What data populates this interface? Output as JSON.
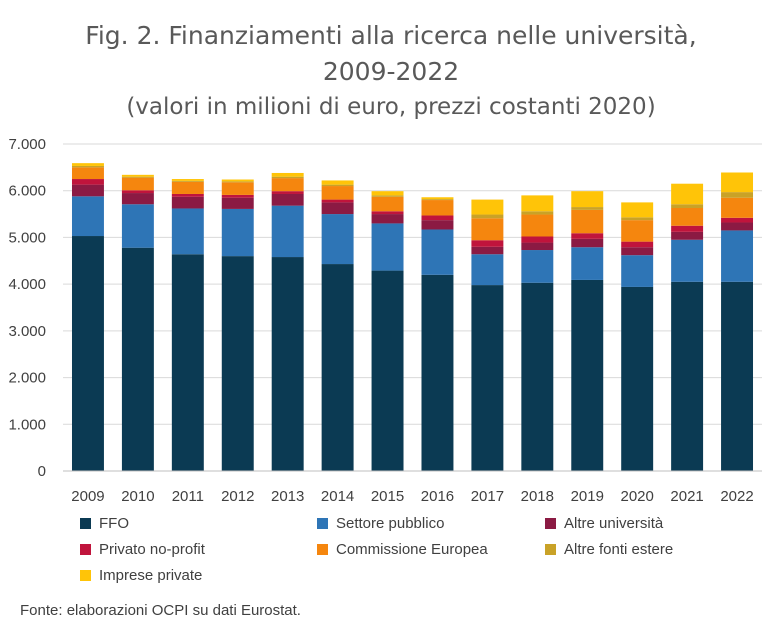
{
  "title_line1": "Fig. 2. Finanziamenti alla ricerca nelle università,",
  "title_line2": "2009-2022",
  "subtitle": "(valori in milioni di euro, prezzi costanti 2020)",
  "source": "Fonte: elaborazioni OCPI su dati Eurostat.",
  "chart_data": {
    "type": "bar",
    "stacked": true,
    "title": "Fig. 2. Finanziamenti alla ricerca nelle università, 2009-2022",
    "subtitle": "(valori in milioni di euro, prezzi costanti 2020)",
    "categories": [
      "2009",
      "2010",
      "2011",
      "2012",
      "2013",
      "2014",
      "2015",
      "2016",
      "2017",
      "2018",
      "2019",
      "2020",
      "2021",
      "2022"
    ],
    "ylim": [
      0,
      7000
    ],
    "yticks": [
      0,
      1000,
      2000,
      3000,
      4000,
      5000,
      6000,
      7000
    ],
    "ytick_labels": [
      "0",
      "1.000",
      "2.000",
      "3.000",
      "4.000",
      "5.000",
      "6.000",
      "7.000"
    ],
    "grid": true,
    "legend_position": "bottom",
    "series": [
      {
        "name": "FFO",
        "color": "#0B3A53",
        "values": [
          5030,
          4780,
          4640,
          4600,
          4580,
          4430,
          4290,
          4200,
          3980,
          4030,
          4090,
          3940,
          4050,
          4050
        ]
      },
      {
        "name": "Settore pubblico",
        "color": "#2E75B6",
        "values": [
          850,
          930,
          980,
          1010,
          1100,
          1070,
          1010,
          970,
          660,
          700,
          700,
          680,
          900,
          1100
        ]
      },
      {
        "name": "Altre università",
        "color": "#8B1A43",
        "values": [
          250,
          240,
          250,
          240,
          250,
          250,
          200,
          200,
          160,
          160,
          180,
          170,
          170,
          170
        ]
      },
      {
        "name": "Privato no-profit",
        "color": "#C0143C",
        "values": [
          120,
          60,
          60,
          60,
          60,
          60,
          60,
          100,
          140,
          130,
          120,
          120,
          130,
          100
        ]
      },
      {
        "name": "Commissione Europea",
        "color": "#F5860E",
        "values": [
          250,
          270,
          260,
          270,
          280,
          290,
          310,
          330,
          470,
          470,
          500,
          460,
          380,
          430
        ]
      },
      {
        "name": "Altre fonti estere",
        "color": "#C9A227",
        "values": [
          30,
          20,
          20,
          20,
          30,
          30,
          30,
          20,
          80,
          70,
          60,
          60,
          80,
          120
        ]
      },
      {
        "name": "Imprese private",
        "color": "#FFC408",
        "values": [
          60,
          40,
          40,
          40,
          80,
          90,
          90,
          40,
          320,
          340,
          340,
          320,
          440,
          420
        ]
      }
    ]
  }
}
